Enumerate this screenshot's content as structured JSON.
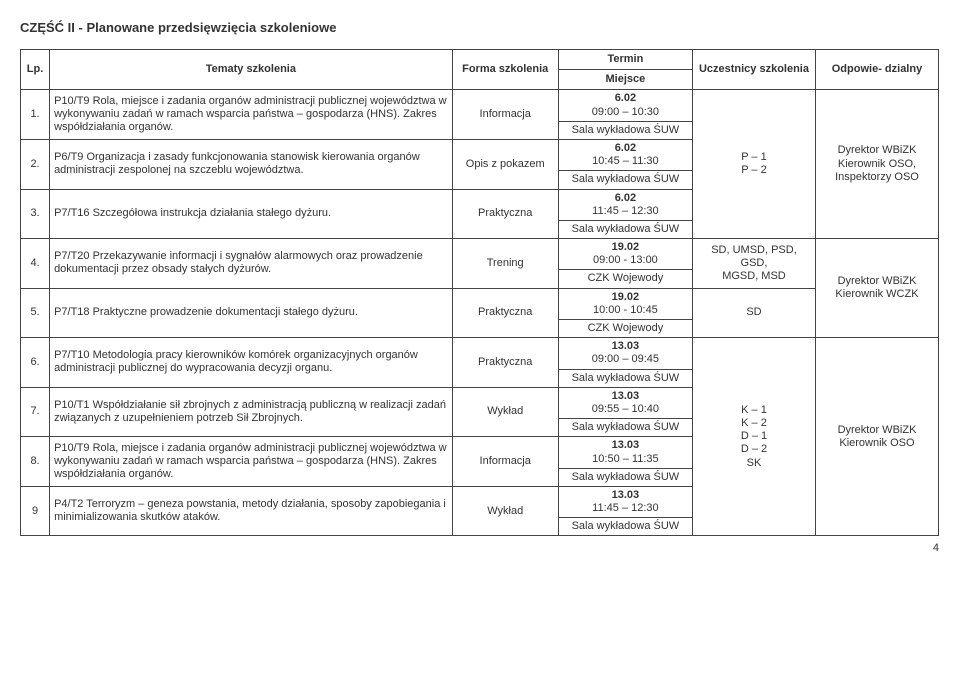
{
  "section_title": "CZĘŚĆ II - Planowane przedsięwzięcia szkoleniowe",
  "headers": {
    "lp": "Lp.",
    "topic": "Tematy szkolenia",
    "form": "Forma szkolenia",
    "termin": "Termin",
    "miejsce": "Miejsce",
    "participants": "Uczestnicy szkolenia",
    "responsible": "Odpowie- dzialny"
  },
  "rows": [
    {
      "lp": "1.",
      "topic": "P10/T9 Rola, miejsce i zadania organów administracji publicznej województwa w wykonywaniu zadań w ramach wsparcia państwa – gospodarza (HNS). Zakres współdziałania organów.",
      "form": "Informacja",
      "date": "6.02",
      "time": "09:00 – 10:30",
      "place": "Sala wykładowa ŚUW"
    },
    {
      "lp": "2.",
      "topic": "P6/T9 Organizacja i zasady funkcjonowania stanowisk kierowania organów administracji zespolonej na szczeblu województwa.",
      "form": "Opis z pokazem",
      "date": "6.02",
      "time": "10:45 – 11:30",
      "place": "Sala wykładowa ŚUW"
    },
    {
      "lp": "3.",
      "topic": "P7/T16 Szczegółowa instrukcja działania stałego dyżuru.",
      "form": "Praktyczna",
      "date": "6.02",
      "time": "11:45 – 12:30",
      "place": "Sala wykładowa ŚUW"
    }
  ],
  "group1": {
    "participants": "P – 1\nP – 2",
    "responsible": "Dyrektor WBiZK\nKierownik OSO,\nInspektorzy OSO"
  },
  "rows2": [
    {
      "lp": "4.",
      "topic": "P7/T20 Przekazywanie informacji i sygnałów alarmowych oraz prowadzenie dokumentacji przez obsady stałych dyżurów.",
      "form": "Trening",
      "date": "19.02",
      "time": "09:00 - 13:00",
      "place": "CZK Wojewody",
      "participants": "SD, UMSD, PSD, GSD,\nMGSD, MSD"
    },
    {
      "lp": "5.",
      "topic": "P7/T18 Praktyczne prowadzenie dokumentacji stałego dyżuru.",
      "form": "Praktyczna",
      "date": "19.02",
      "time": "10:00 - 10:45",
      "place": "CZK Wojewody",
      "participants": "SD"
    }
  ],
  "group2_resp": "Dyrektor WBiZK\nKierownik WCZK",
  "rows3": [
    {
      "lp": "6.",
      "topic": "P7/T10 Metodologia pracy kierowników komórek organizacyjnych organów administracji publicznej do wypracowania decyzji organu.",
      "form": "Praktyczna",
      "date": "13.03",
      "time": "09:00 – 09:45",
      "place": "Sala wykładowa ŚUW"
    },
    {
      "lp": "7.",
      "topic": "P10/T1 Współdziałanie sił zbrojnych z administracją publiczną w realizacji zadań związanych z uzupełnieniem potrzeb Sił Zbrojnych.",
      "form": "Wykład",
      "date": "13.03",
      "time": "09:55 – 10:40",
      "place": "Sala wykładowa ŚUW"
    },
    {
      "lp": "8.",
      "topic": "P10/T9 Rola, miejsce i zadania organów administracji publicznej województwa w wykonywaniu zadań w ramach wsparcia państwa – gospodarza (HNS). Zakres współdziałania organów.",
      "form": "Informacja",
      "date": "13.03",
      "time": "10:50 – 11:35",
      "place": "Sala wykładowa ŚUW"
    },
    {
      "lp": "9",
      "topic": "P4/T2 Terroryzm – geneza powstania, metody działania, sposoby zapobiegania i minimializowania skutków ataków.",
      "form": "Wykład",
      "date": "13.03",
      "time": "11:45 – 12:30",
      "place": "Sala wykładowa ŚUW"
    }
  ],
  "group3": {
    "participants": "K – 1\nK – 2\nD – 1\nD – 2\nSK",
    "responsible": "Dyrektor WBiZK\nKierownik OSO"
  },
  "page_num": "4"
}
